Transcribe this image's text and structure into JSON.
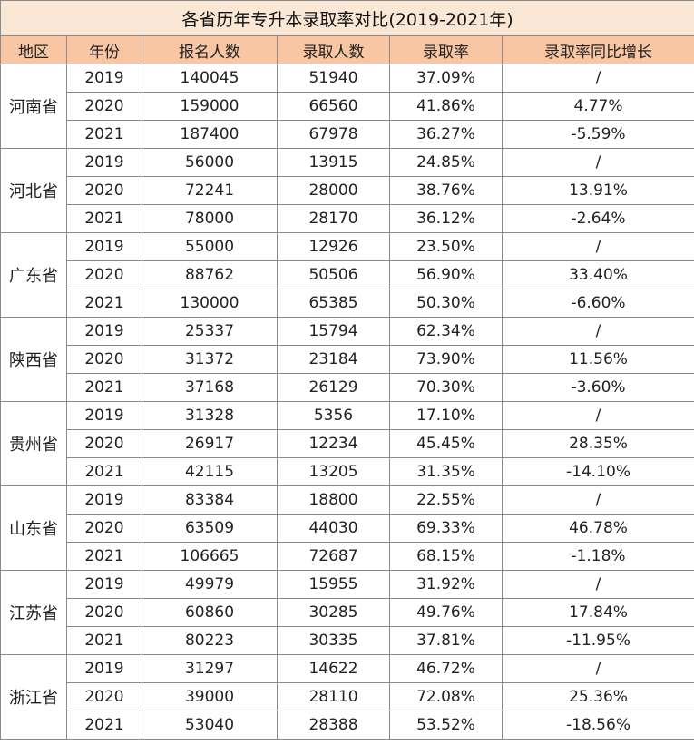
{
  "title": "各省历年专升本录取率对比(2019-2021年)",
  "headers": [
    "地区",
    "年份",
    "报名人数",
    "录取人数",
    "录取率",
    "录取率同比增长"
  ],
  "provinces": [
    {
      "name": "河南省",
      "rows": [
        {
          "year": "2019",
          "applicants": "140045",
          "admitted": "51940",
          "rate": "37.09%",
          "growth": "/"
        },
        {
          "year": "2020",
          "applicants": "159000",
          "admitted": "66560",
          "rate": "41.86%",
          "growth": "4.77%"
        },
        {
          "year": "2021",
          "applicants": "187400",
          "admitted": "67978",
          "rate": "36.27%",
          "growth": "-5.59%"
        }
      ]
    },
    {
      "name": "河北省",
      "rows": [
        {
          "year": "2019",
          "applicants": "56000",
          "admitted": "13915",
          "rate": "24.85%",
          "growth": "/"
        },
        {
          "year": "2020",
          "applicants": "72241",
          "admitted": "28000",
          "rate": "38.76%",
          "growth": "13.91%"
        },
        {
          "year": "2021",
          "applicants": "78000",
          "admitted": "28170",
          "rate": "36.12%",
          "growth": "-2.64%"
        }
      ]
    },
    {
      "name": "广东省",
      "rows": [
        {
          "year": "2019",
          "applicants": "55000",
          "admitted": "12926",
          "rate": "23.50%",
          "growth": "/"
        },
        {
          "year": "2020",
          "applicants": "88762",
          "admitted": "50506",
          "rate": "56.90%",
          "growth": "33.40%"
        },
        {
          "year": "2021",
          "applicants": "130000",
          "admitted": "65385",
          "rate": "50.30%",
          "growth": "-6.60%"
        }
      ]
    },
    {
      "name": "陕西省",
      "rows": [
        {
          "year": "2019",
          "applicants": "25337",
          "admitted": "15794",
          "rate": "62.34%",
          "growth": "/"
        },
        {
          "year": "2020",
          "applicants": "31372",
          "admitted": "23184",
          "rate": "73.90%",
          "growth": "11.56%"
        },
        {
          "year": "2021",
          "applicants": "37168",
          "admitted": "26129",
          "rate": "70.30%",
          "growth": "-3.60%"
        }
      ]
    },
    {
      "name": "贵州省",
      "rows": [
        {
          "year": "2019",
          "applicants": "31328",
          "admitted": "5356",
          "rate": "17.10%",
          "growth": "/"
        },
        {
          "year": "2020",
          "applicants": "26917",
          "admitted": "12234",
          "rate": "45.45%",
          "growth": "28.35%"
        },
        {
          "year": "2021",
          "applicants": "42115",
          "admitted": "13205",
          "rate": "31.35%",
          "growth": "-14.10%"
        }
      ]
    },
    {
      "name": "山东省",
      "rows": [
        {
          "year": "2019",
          "applicants": "83384",
          "admitted": "18800",
          "rate": "22.55%",
          "growth": "/"
        },
        {
          "year": "2020",
          "applicants": "63509",
          "admitted": "44030",
          "rate": "69.33%",
          "growth": "46.78%"
        },
        {
          "year": "2021",
          "applicants": "106665",
          "admitted": "72687",
          "rate": "68.15%",
          "growth": "-1.18%"
        }
      ]
    },
    {
      "name": "江苏省",
      "rows": [
        {
          "year": "2019",
          "applicants": "49979",
          "admitted": "15955",
          "rate": "31.92%",
          "growth": "/"
        },
        {
          "year": "2020",
          "applicants": "60860",
          "admitted": "30285",
          "rate": "49.76%",
          "growth": "17.84%"
        },
        {
          "year": "2021",
          "applicants": "80223",
          "admitted": "30335",
          "rate": "37.81%",
          "growth": "-11.95%"
        }
      ]
    },
    {
      "name": "浙江省",
      "rows": [
        {
          "year": "2019",
          "applicants": "31297",
          "admitted": "14622",
          "rate": "46.72%",
          "growth": "/"
        },
        {
          "year": "2020",
          "applicants": "39000",
          "admitted": "28110",
          "rate": "72.08%",
          "growth": "25.36%"
        },
        {
          "year": "2021",
          "applicants": "53040",
          "admitted": "28388",
          "rate": "53.52%",
          "growth": "-18.56%"
        }
      ]
    }
  ]
}
